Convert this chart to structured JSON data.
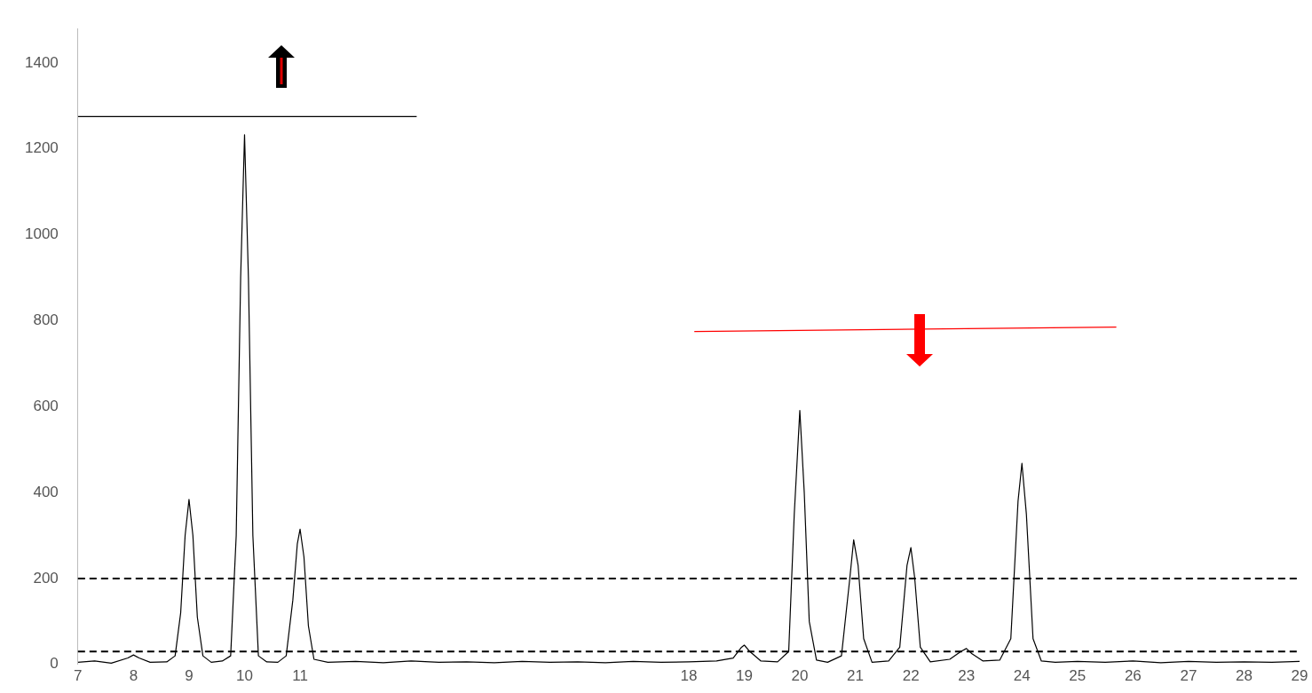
{
  "chart_data": {
    "type": "line",
    "xlim": [
      7,
      29
    ],
    "ylim": [
      0,
      1480
    ],
    "xticks": [
      7,
      8,
      9,
      10,
      11,
      18,
      19,
      20,
      21,
      22,
      23,
      24,
      25,
      26,
      27,
      28,
      29
    ],
    "yticks": [
      0,
      200,
      400,
      600,
      800,
      1000,
      1200,
      1400
    ],
    "marker": "none",
    "series": [
      {
        "color": "#000000",
        "x": [
          7,
          7.3,
          7.6,
          7.9,
          8.0,
          8.1,
          8.3,
          8.6,
          8.75,
          8.85,
          8.93,
          9.0,
          9.07,
          9.15,
          9.25,
          9.4,
          9.6,
          9.75,
          9.85,
          9.93,
          10.0,
          10.07,
          10.15,
          10.25,
          10.4,
          10.6,
          10.75,
          10.87,
          10.95,
          11.0,
          11.07,
          11.15,
          11.25,
          11.5,
          12,
          12.5,
          13,
          13.5,
          14,
          14.5,
          15,
          15.5,
          16,
          16.5,
          17,
          17.5,
          18,
          18.5,
          18.8,
          18.95,
          19.0,
          19.1,
          19.3,
          19.6,
          19.8,
          19.9,
          20.0,
          20.08,
          20.17,
          20.3,
          20.5,
          20.75,
          20.9,
          20.97,
          21.05,
          21.15,
          21.3,
          21.6,
          21.8,
          21.93,
          22.0,
          22.07,
          22.17,
          22.35,
          22.7,
          22.9,
          23.0,
          23.1,
          23.3,
          23.6,
          23.8,
          23.93,
          24.0,
          24.08,
          24.2,
          24.35,
          24.6,
          25,
          25.5,
          26,
          26.5,
          27,
          27.5,
          28,
          28.5,
          29
        ],
        "values": [
          5,
          8,
          3,
          15,
          22,
          15,
          5,
          6,
          20,
          120,
          300,
          384,
          300,
          110,
          20,
          5,
          8,
          20,
          300,
          900,
          1233,
          900,
          300,
          20,
          6,
          5,
          20,
          150,
          280,
          315,
          250,
          90,
          12,
          5,
          7,
          4,
          8,
          5,
          6,
          4,
          7,
          5,
          6,
          4,
          7,
          5,
          6,
          8,
          15,
          40,
          45,
          30,
          8,
          6,
          30,
          350,
          591,
          400,
          100,
          10,
          5,
          20,
          200,
          290,
          230,
          60,
          5,
          8,
          40,
          230,
          272,
          200,
          40,
          6,
          12,
          30,
          37,
          25,
          8,
          10,
          60,
          380,
          468,
          350,
          60,
          8,
          5,
          7,
          5,
          8,
          4,
          7,
          5,
          6,
          5,
          7
        ]
      },
      {
        "type": "line",
        "color": "#000000",
        "x": [
          7,
          13.1
        ],
        "values": [
          1275,
          1275
        ]
      },
      {
        "type": "line",
        "color": "#ff0000",
        "x": [
          18.1,
          25.7
        ],
        "values": [
          775,
          785
        ]
      }
    ],
    "ref_lines": [
      {
        "axis": "y",
        "value": 200,
        "color": "#000000",
        "line_style": "dashed"
      },
      {
        "axis": "y",
        "value": 30,
        "color": "#000000",
        "line_style": "dashed"
      }
    ]
  }
}
